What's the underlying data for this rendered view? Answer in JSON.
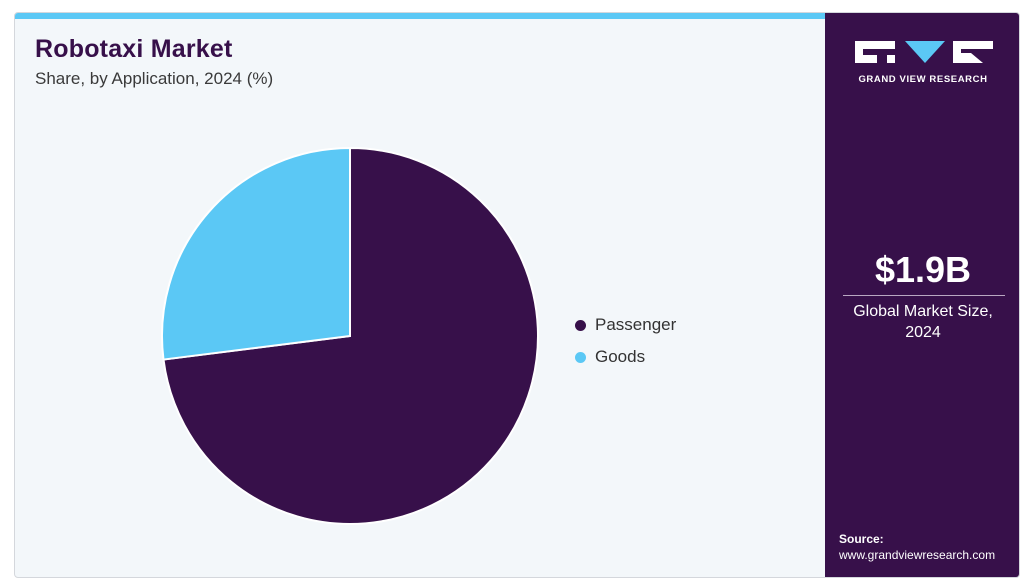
{
  "header": {
    "title": "Robotaxi Market",
    "subtitle": "Share, by Application, 2024 (%)"
  },
  "sidebar": {
    "brand": "GRAND VIEW RESEARCH",
    "market_size_value": "$1.9B",
    "market_size_label": "Global Market Size, 2024",
    "source_label": "Source:",
    "source_url": "www.grandviewresearch.com"
  },
  "colors": {
    "passenger": "#37104a",
    "goods": "#5bc8f5",
    "accent": "#5bc8f5",
    "sidebar_bg": "#37104a"
  },
  "chart_data": {
    "type": "pie",
    "title": "Robotaxi Market",
    "subtitle": "Share, by Application, 2024 (%)",
    "categories": [
      "Passenger",
      "Goods"
    ],
    "values": [
      73,
      27
    ],
    "colors": [
      "#37104a",
      "#5bc8f5"
    ],
    "legend": "right"
  }
}
